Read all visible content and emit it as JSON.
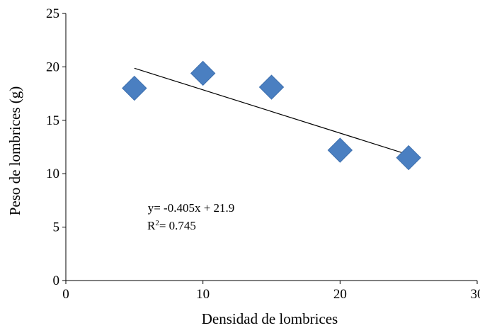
{
  "chart_data": {
    "type": "scatter",
    "title": "",
    "xlabel": "Densidad de lombrices",
    "ylabel": "Peso de lombrices (g)",
    "xlim": [
      0,
      30
    ],
    "ylim": [
      0,
      25
    ],
    "xticks": [
      0,
      10,
      20,
      30
    ],
    "yticks": [
      0,
      5,
      10,
      15,
      20,
      25
    ],
    "x_tick_labels": [
      "0",
      "10",
      "20",
      "30"
    ],
    "y_tick_labels": [
      "0",
      "5",
      "10",
      "15",
      "20",
      "25"
    ],
    "grid": false,
    "legend": "none",
    "series": [
      {
        "marker": "diamond",
        "color": "#4a7fc1",
        "x": [
          5,
          10,
          15,
          20,
          25
        ],
        "y": [
          18.0,
          19.4,
          18.1,
          12.2,
          11.5
        ]
      }
    ],
    "trendline": {
      "type": "linear",
      "slope": -0.405,
      "intercept": 21.9,
      "x_range": [
        5,
        25
      ],
      "color": "#000000"
    },
    "annotations": {
      "equation": "y= -0.405x + 21.9",
      "r2_prefix": "R",
      "r2_sup": "2",
      "r2_value": "= 0.745"
    }
  }
}
